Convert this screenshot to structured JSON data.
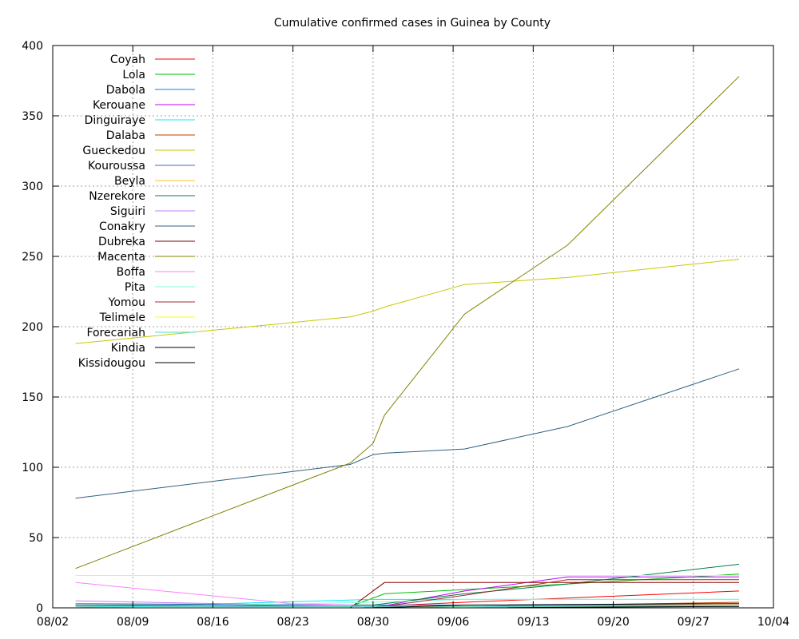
{
  "chart_data": {
    "type": "line",
    "title": "Cumulative confirmed cases in Guinea by County",
    "xlabel": "",
    "ylabel": "",
    "x_ticks": [
      "08/02",
      "08/09",
      "08/16",
      "08/23",
      "08/30",
      "09/06",
      "09/13",
      "09/20",
      "09/27",
      "10/04"
    ],
    "x_range_days": [
      0,
      63
    ],
    "ylim": [
      0,
      400
    ],
    "y_ticks": [
      0,
      50,
      100,
      150,
      200,
      250,
      300,
      350,
      400
    ],
    "grid": true,
    "legend_position": "top-left",
    "series": [
      {
        "name": "Coyah",
        "color": "#ff0000",
        "points": [
          [
            "08/04",
            1
          ],
          [
            "08/30",
            1
          ],
          [
            "09/07",
            4
          ],
          [
            "09/16",
            7
          ],
          [
            "10/01",
            12
          ]
        ]
      },
      {
        "name": "Lola",
        "color": "#00c000",
        "points": [
          [
            "08/04",
            2
          ],
          [
            "08/28",
            1
          ],
          [
            "08/31",
            10
          ],
          [
            "09/07",
            13
          ],
          [
            "09/16",
            17
          ],
          [
            "10/01",
            24
          ]
        ]
      },
      {
        "name": "Dabola",
        "color": "#0080ff",
        "points": [
          [
            "08/04",
            2
          ],
          [
            "08/30",
            1
          ],
          [
            "09/07",
            1
          ],
          [
            "10/01",
            1
          ]
        ]
      },
      {
        "name": "Kerouane",
        "color": "#c000ff",
        "points": [
          [
            "08/04",
            0
          ],
          [
            "08/30",
            0
          ],
          [
            "09/07",
            12
          ],
          [
            "09/16",
            22
          ],
          [
            "10/01",
            22
          ]
        ]
      },
      {
        "name": "Dinguiraye",
        "color": "#00eeee",
        "points": [
          [
            "08/04",
            0
          ],
          [
            "08/30",
            6
          ],
          [
            "09/07",
            6
          ],
          [
            "10/01",
            6
          ]
        ]
      },
      {
        "name": "Dalaba",
        "color": "#c04000",
        "points": [
          [
            "08/04",
            0
          ],
          [
            "08/30",
            0
          ],
          [
            "09/07",
            1
          ],
          [
            "09/16",
            2
          ],
          [
            "10/01",
            4
          ]
        ]
      },
      {
        "name": "Gueckedou",
        "color": "#c8c800",
        "points": [
          [
            "08/04",
            188
          ],
          [
            "08/23",
            203
          ],
          [
            "08/28",
            207
          ],
          [
            "08/30",
            211
          ],
          [
            "08/31",
            214
          ],
          [
            "09/07",
            230
          ],
          [
            "09/16",
            235
          ],
          [
            "10/01",
            248
          ]
        ]
      },
      {
        "name": "Kouroussa",
        "color": "#4169e1",
        "points": [
          [
            "08/04",
            3
          ],
          [
            "08/30",
            2
          ],
          [
            "09/07",
            2
          ],
          [
            "10/01",
            2
          ]
        ]
      },
      {
        "name": "Beyla",
        "color": "#ffc020",
        "points": [
          [
            "08/04",
            0
          ],
          [
            "08/30",
            0
          ],
          [
            "09/07",
            1
          ],
          [
            "10/01",
            2
          ]
        ]
      },
      {
        "name": "Nzerekore",
        "color": "#008040",
        "points": [
          [
            "08/04",
            2
          ],
          [
            "08/30",
            2
          ],
          [
            "09/07",
            10
          ],
          [
            "09/16",
            17
          ],
          [
            "10/01",
            31
          ]
        ]
      },
      {
        "name": "Siguiri",
        "color": "#c080ff",
        "points": [
          [
            "08/04",
            5
          ],
          [
            "08/23",
            2
          ],
          [
            "08/28",
            2
          ],
          [
            "08/30",
            0
          ],
          [
            "10/01",
            0
          ]
        ]
      },
      {
        "name": "Conakry",
        "color": "#306080",
        "points": [
          [
            "08/04",
            78
          ],
          [
            "08/28",
            102
          ],
          [
            "08/30",
            109
          ],
          [
            "08/31",
            110
          ],
          [
            "09/07",
            113
          ],
          [
            "09/16",
            129
          ],
          [
            "10/01",
            170
          ]
        ]
      },
      {
        "name": "Dubreka",
        "color": "#8b0000",
        "points": [
          [
            "08/04",
            0
          ],
          [
            "08/28",
            0
          ],
          [
            "08/31",
            18
          ],
          [
            "09/07",
            18
          ],
          [
            "10/01",
            18
          ]
        ]
      },
      {
        "name": "Macenta",
        "color": "#808000",
        "points": [
          [
            "08/04",
            28
          ],
          [
            "08/28",
            103
          ],
          [
            "08/30",
            117
          ],
          [
            "08/31",
            137
          ],
          [
            "09/07",
            209
          ],
          [
            "09/16",
            258
          ],
          [
            "10/01",
            378
          ]
        ]
      },
      {
        "name": "Boffa",
        "color": "#ff80ff",
        "points": [
          [
            "08/04",
            18
          ],
          [
            "08/23",
            3
          ],
          [
            "08/28",
            2
          ],
          [
            "08/30",
            0
          ],
          [
            "10/01",
            0
          ]
        ]
      },
      {
        "name": "Pita",
        "color": "#7fffd4",
        "points": [
          [
            "08/04",
            0
          ],
          [
            "08/30",
            4
          ],
          [
            "09/07",
            6
          ],
          [
            "09/16",
            6
          ],
          [
            "10/01",
            6
          ]
        ]
      },
      {
        "name": "Yomou",
        "color": "#a52a2a",
        "points": [
          [
            "08/04",
            0
          ],
          [
            "08/30",
            0
          ],
          [
            "09/07",
            9
          ],
          [
            "09/16",
            20
          ],
          [
            "10/01",
            20
          ]
        ]
      },
      {
        "name": "Telimele",
        "color": "#ffff00",
        "points": [
          [
            "08/04",
            23
          ],
          [
            "10/01",
            23
          ]
        ]
      },
      {
        "name": "Forecariah",
        "color": "#40e0d0",
        "points": [
          [
            "08/04",
            1
          ],
          [
            "08/30",
            1
          ],
          [
            "09/07",
            1
          ],
          [
            "10/01",
            1
          ]
        ]
      },
      {
        "name": "Kindia",
        "color": "#000000",
        "points": [
          [
            "08/04",
            0
          ],
          [
            "08/30",
            0
          ],
          [
            "09/07",
            2
          ],
          [
            "10/01",
            3
          ]
        ]
      },
      {
        "name": "Kissidougou",
        "color": "#000000",
        "points": [
          [
            "08/04",
            0
          ],
          [
            "08/30",
            0
          ],
          [
            "09/07",
            0
          ],
          [
            "10/01",
            1
          ]
        ]
      }
    ]
  }
}
